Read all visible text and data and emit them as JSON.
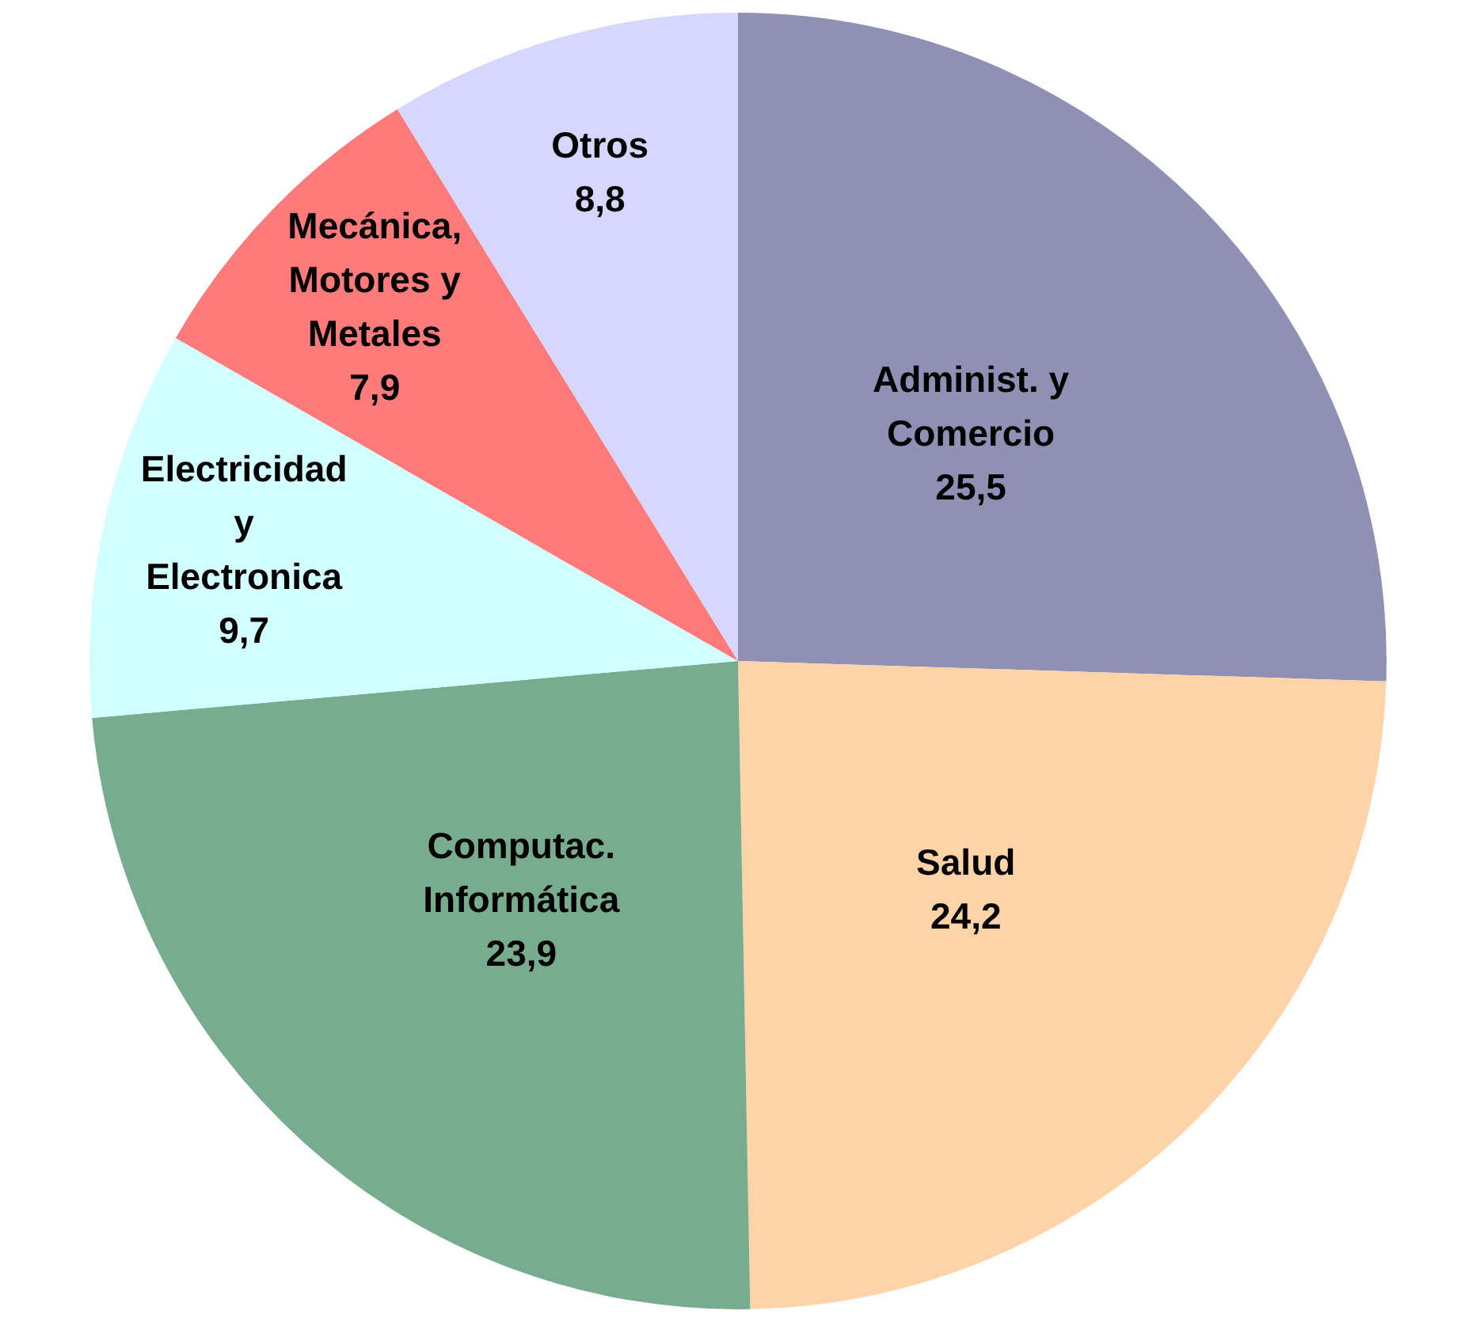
{
  "chart_data": {
    "type": "pie",
    "categories": [
      "Administ. y\nComercio",
      "Salud",
      "Computac.\nInformática",
      "Electricidad\ny\nElectronica",
      "Mecánica,\nMotores y\nMetales",
      "Otros"
    ],
    "values": [
      25.5,
      24.2,
      23.9,
      9.7,
      7.9,
      8.8
    ],
    "colors": [
      "#9090b4",
      "#ffd3a8",
      "#77ad8e",
      "#d2ffff",
      "#ff7a7a",
      "#d6d6ff"
    ],
    "value_labels": [
      "25,5",
      "24,2",
      "23,9",
      "9,7",
      "7,9",
      "8,8"
    ],
    "legend": false
  }
}
